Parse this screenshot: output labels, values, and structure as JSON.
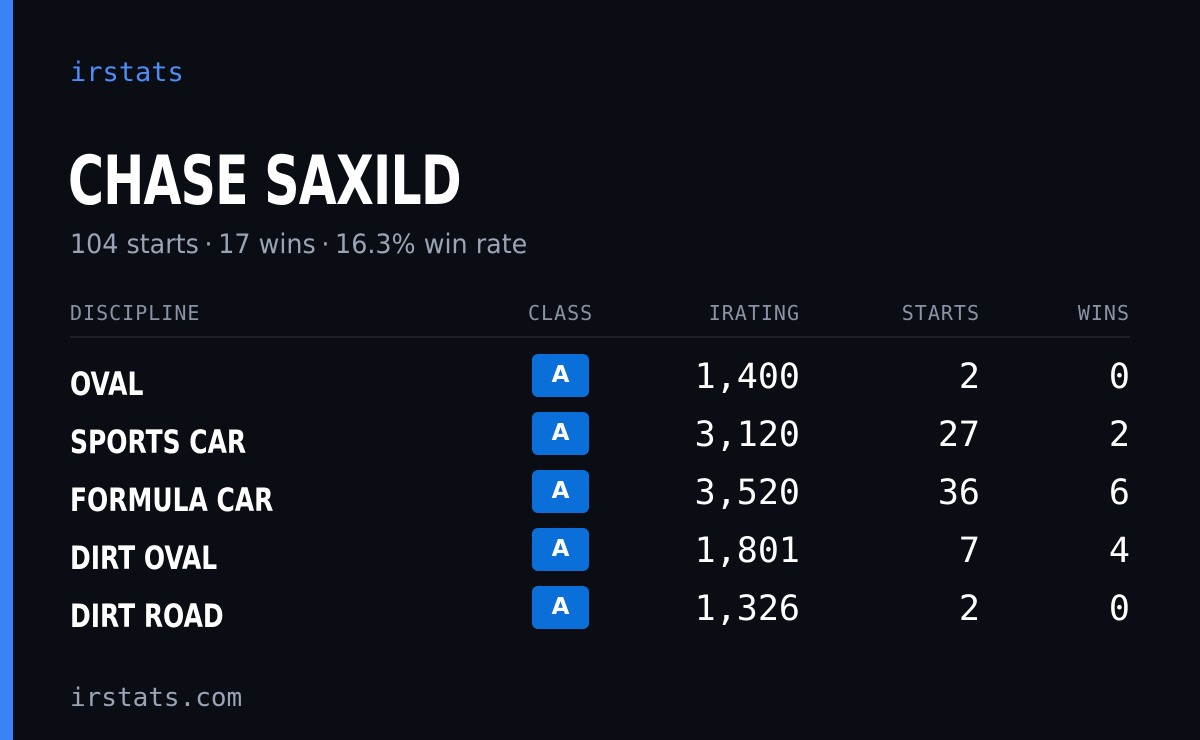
{
  "brand": "irstats",
  "driver": {
    "name": "CHASE SAXILD",
    "summary": {
      "starts": "104 starts",
      "wins": "17 wins",
      "win_rate": "16.3% win rate",
      "separator": "·"
    }
  },
  "table": {
    "headers": {
      "discipline": "DISCIPLINE",
      "class": "CLASS",
      "irating": "IRATING",
      "starts": "STARTS",
      "wins": "WINS"
    },
    "rows": [
      {
        "discipline": "OVAL",
        "class": "A",
        "irating": "1,400",
        "starts": "2",
        "wins": "0"
      },
      {
        "discipline": "SPORTS CAR",
        "class": "A",
        "irating": "3,120",
        "starts": "27",
        "wins": "2"
      },
      {
        "discipline": "FORMULA CAR",
        "class": "A",
        "irating": "3,520",
        "starts": "36",
        "wins": "6"
      },
      {
        "discipline": "DIRT OVAL",
        "class": "A",
        "irating": "1,801",
        "starts": "7",
        "wins": "4"
      },
      {
        "discipline": "DIRT ROAD",
        "class": "A",
        "irating": "1,326",
        "starts": "2",
        "wins": "0"
      }
    ]
  },
  "footer": "irstats.com",
  "colors": {
    "background": "#0a0d14",
    "accent": "#3b82f6",
    "class_badge": "#0a6fd8",
    "muted_text": "#9aa4b6"
  }
}
